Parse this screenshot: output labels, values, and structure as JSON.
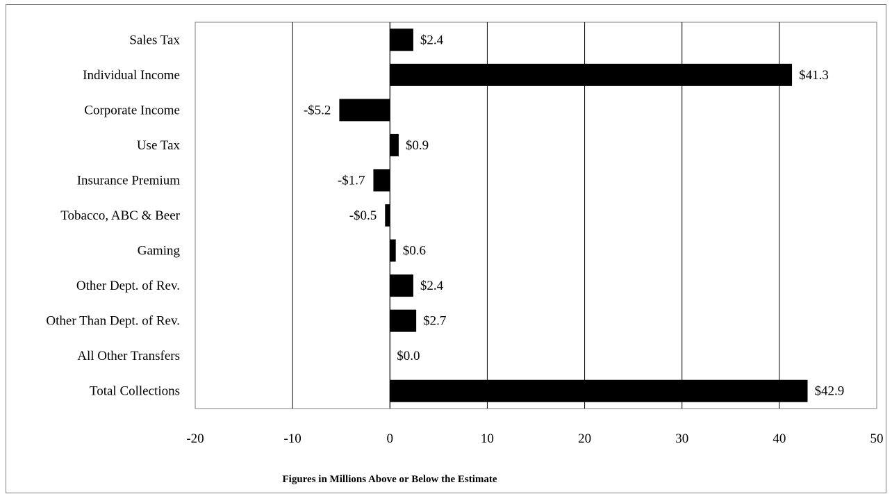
{
  "chart_data": {
    "type": "bar",
    "orientation": "horizontal",
    "categories": [
      "Sales Tax",
      "Individual Income",
      "Corporate Income",
      "Use Tax",
      "Insurance Premium",
      "Tobacco, ABC & Beer",
      "Gaming",
      "Other Dept. of Rev.",
      "Other Than Dept. of Rev.",
      "All Other Transfers",
      "Total Collections"
    ],
    "values": [
      2.4,
      41.3,
      -5.2,
      0.9,
      -1.7,
      -0.5,
      0.6,
      2.4,
      2.7,
      0.0,
      42.9
    ],
    "data_labels": [
      "$2.4",
      "$41.3",
      "-$5.2",
      "$0.9",
      "-$1.7",
      "-$0.5",
      "$0.6",
      "$2.4",
      "$2.7",
      "$0.0",
      "$42.9"
    ],
    "title": "",
    "xlabel": "Figures in Millions Above or Below the Estimate",
    "ylabel": "",
    "xlim": [
      -20,
      50
    ],
    "xticks": [
      -20,
      -10,
      0,
      10,
      20,
      30,
      40,
      50
    ],
    "xtick_labels": [
      "-20",
      "-10",
      "0",
      "10",
      "20",
      "30",
      "40",
      "50"
    ],
    "grid": "vertical",
    "legend": "none",
    "bar_color": "#000000"
  }
}
